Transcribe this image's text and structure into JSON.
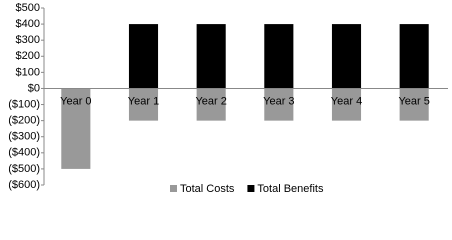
{
  "chart_data": {
    "type": "bar",
    "categories": [
      "Year 0",
      "Year 1",
      "Year 2",
      "Year 3",
      "Year 4",
      "Year 5"
    ],
    "series": [
      {
        "name": "Total Costs",
        "color": "#999999",
        "values": [
          -500,
          -200,
          -200,
          -200,
          -200,
          -200
        ]
      },
      {
        "name": "Total Benefits",
        "color": "#000000",
        "values": [
          0,
          400,
          400,
          400,
          400,
          400
        ]
      }
    ],
    "ylim": [
      -600,
      500
    ],
    "yticks": [
      {
        "value": 500,
        "label": "$500"
      },
      {
        "value": 400,
        "label": "$400"
      },
      {
        "value": 300,
        "label": "$300"
      },
      {
        "value": 200,
        "label": "$200"
      },
      {
        "value": 100,
        "label": "$100"
      },
      {
        "value": 0,
        "label": "$0"
      },
      {
        "value": -100,
        "label": "($100)"
      },
      {
        "value": -200,
        "label": "($200)"
      },
      {
        "value": -300,
        "label": "($300)"
      },
      {
        "value": -400,
        "label": "($400)"
      },
      {
        "value": -500,
        "label": "($500)"
      },
      {
        "value": -600,
        "label": "($600)"
      }
    ],
    "legend": "bottom"
  }
}
